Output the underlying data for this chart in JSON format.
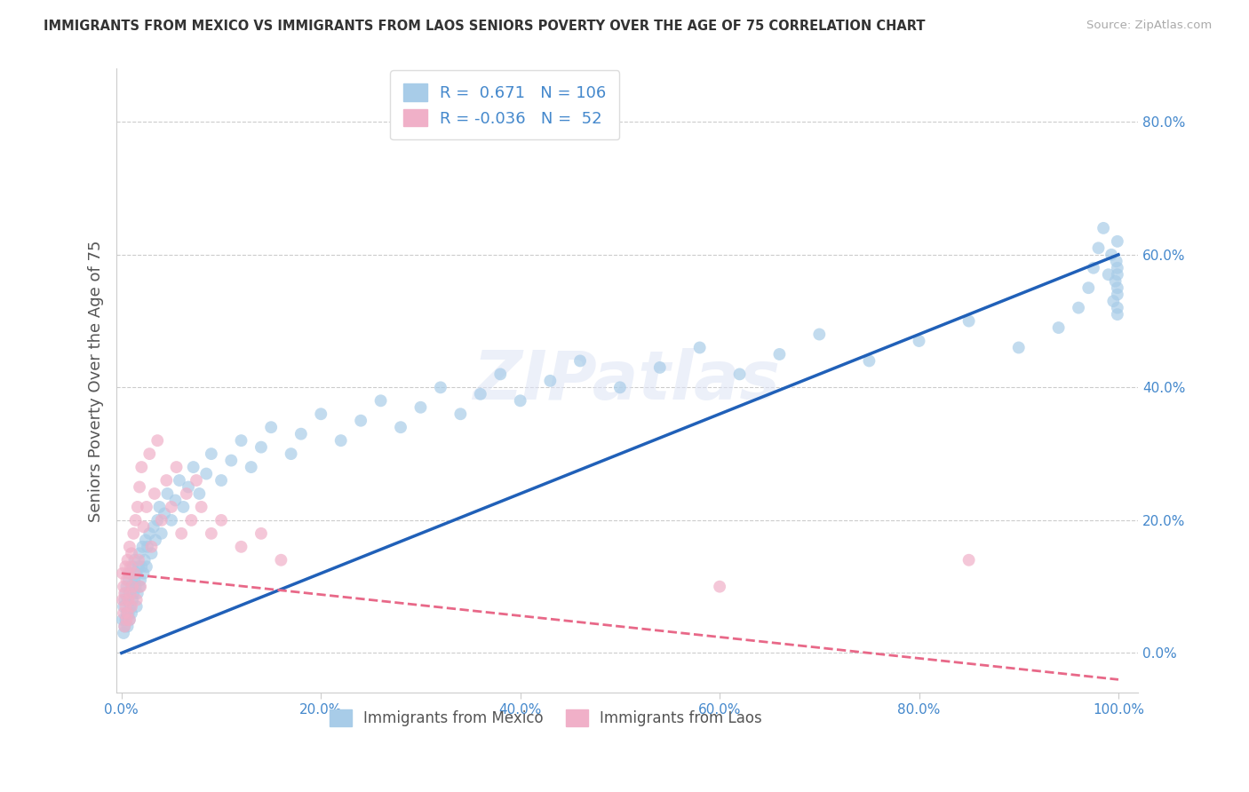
{
  "title": "IMMIGRANTS FROM MEXICO VS IMMIGRANTS FROM LAOS SENIORS POVERTY OVER THE AGE OF 75 CORRELATION CHART",
  "source": "Source: ZipAtlas.com",
  "ylabel": "Seniors Poverty Over the Age of 75",
  "xlim": [
    -0.005,
    1.02
  ],
  "ylim": [
    -0.06,
    0.88
  ],
  "xticks": [
    0.0,
    0.2,
    0.4,
    0.6,
    0.8,
    1.0
  ],
  "yticks": [
    0.0,
    0.2,
    0.4,
    0.6,
    0.8
  ],
  "mexico_R": 0.671,
  "mexico_N": 106,
  "laos_R": -0.036,
  "laos_N": 52,
  "mexico_color": "#a8cce8",
  "laos_color": "#f0b0c8",
  "mexico_line_color": "#2060b8",
  "laos_line_color": "#e86888",
  "watermark": "ZIPatlas",
  "background_color": "#ffffff",
  "grid_color": "#cccccc",
  "label_color": "#4488cc",
  "title_color": "#333333",
  "ylabel_color": "#555555",
  "legend_label_color": "#555555",
  "mexico_line_x0": 0.0,
  "mexico_line_y0": 0.0,
  "mexico_line_x1": 1.0,
  "mexico_line_y1": 0.6,
  "laos_line_x0": 0.0,
  "laos_line_y0": 0.12,
  "laos_line_x1": 1.0,
  "laos_line_y1": -0.04,
  "mexico_x": [
    0.001,
    0.002,
    0.002,
    0.003,
    0.003,
    0.004,
    0.004,
    0.005,
    0.005,
    0.006,
    0.006,
    0.007,
    0.007,
    0.008,
    0.008,
    0.009,
    0.009,
    0.01,
    0.01,
    0.011,
    0.011,
    0.012,
    0.013,
    0.013,
    0.014,
    0.015,
    0.015,
    0.016,
    0.017,
    0.018,
    0.018,
    0.019,
    0.02,
    0.021,
    0.022,
    0.023,
    0.024,
    0.025,
    0.026,
    0.028,
    0.03,
    0.032,
    0.034,
    0.036,
    0.038,
    0.04,
    0.043,
    0.046,
    0.05,
    0.054,
    0.058,
    0.062,
    0.067,
    0.072,
    0.078,
    0.085,
    0.09,
    0.1,
    0.11,
    0.12,
    0.13,
    0.14,
    0.15,
    0.17,
    0.18,
    0.2,
    0.22,
    0.24,
    0.26,
    0.28,
    0.3,
    0.32,
    0.34,
    0.36,
    0.38,
    0.4,
    0.43,
    0.46,
    0.5,
    0.54,
    0.58,
    0.62,
    0.66,
    0.7,
    0.75,
    0.8,
    0.85,
    0.9,
    0.94,
    0.96,
    0.97,
    0.975,
    0.98,
    0.985,
    0.99,
    0.993,
    0.995,
    0.997,
    0.998,
    0.999,
    0.999,
    0.999,
    0.999,
    0.999,
    0.999,
    0.999
  ],
  "mexico_y": [
    0.05,
    0.03,
    0.07,
    0.04,
    0.08,
    0.05,
    0.09,
    0.06,
    0.1,
    0.04,
    0.08,
    0.06,
    0.11,
    0.05,
    0.09,
    0.07,
    0.12,
    0.06,
    0.1,
    0.08,
    0.13,
    0.09,
    0.11,
    0.14,
    0.1,
    0.07,
    0.12,
    0.09,
    0.13,
    0.1,
    0.15,
    0.11,
    0.13,
    0.16,
    0.12,
    0.14,
    0.17,
    0.13,
    0.16,
    0.18,
    0.15,
    0.19,
    0.17,
    0.2,
    0.22,
    0.18,
    0.21,
    0.24,
    0.2,
    0.23,
    0.26,
    0.22,
    0.25,
    0.28,
    0.24,
    0.27,
    0.3,
    0.26,
    0.29,
    0.32,
    0.28,
    0.31,
    0.34,
    0.3,
    0.33,
    0.36,
    0.32,
    0.35,
    0.38,
    0.34,
    0.37,
    0.4,
    0.36,
    0.39,
    0.42,
    0.38,
    0.41,
    0.44,
    0.4,
    0.43,
    0.46,
    0.42,
    0.45,
    0.48,
    0.44,
    0.47,
    0.5,
    0.46,
    0.49,
    0.52,
    0.55,
    0.58,
    0.61,
    0.64,
    0.57,
    0.6,
    0.53,
    0.56,
    0.59,
    0.52,
    0.62,
    0.55,
    0.58,
    0.51,
    0.54,
    0.57
  ],
  "laos_x": [
    0.001,
    0.001,
    0.002,
    0.002,
    0.003,
    0.003,
    0.004,
    0.004,
    0.005,
    0.005,
    0.006,
    0.006,
    0.007,
    0.007,
    0.008,
    0.008,
    0.009,
    0.009,
    0.01,
    0.01,
    0.011,
    0.012,
    0.013,
    0.014,
    0.015,
    0.016,
    0.017,
    0.018,
    0.019,
    0.02,
    0.022,
    0.025,
    0.028,
    0.03,
    0.033,
    0.036,
    0.04,
    0.045,
    0.05,
    0.055,
    0.06,
    0.065,
    0.07,
    0.075,
    0.08,
    0.09,
    0.1,
    0.12,
    0.14,
    0.16,
    0.6,
    0.85
  ],
  "laos_y": [
    0.08,
    0.12,
    0.06,
    0.1,
    0.04,
    0.09,
    0.07,
    0.13,
    0.05,
    0.11,
    0.06,
    0.14,
    0.08,
    0.12,
    0.05,
    0.16,
    0.09,
    0.13,
    0.07,
    0.15,
    0.1,
    0.18,
    0.12,
    0.2,
    0.08,
    0.22,
    0.14,
    0.25,
    0.1,
    0.28,
    0.19,
    0.22,
    0.3,
    0.16,
    0.24,
    0.32,
    0.2,
    0.26,
    0.22,
    0.28,
    0.18,
    0.24,
    0.2,
    0.26,
    0.22,
    0.18,
    0.2,
    0.16,
    0.18,
    0.14,
    0.1,
    0.14
  ]
}
